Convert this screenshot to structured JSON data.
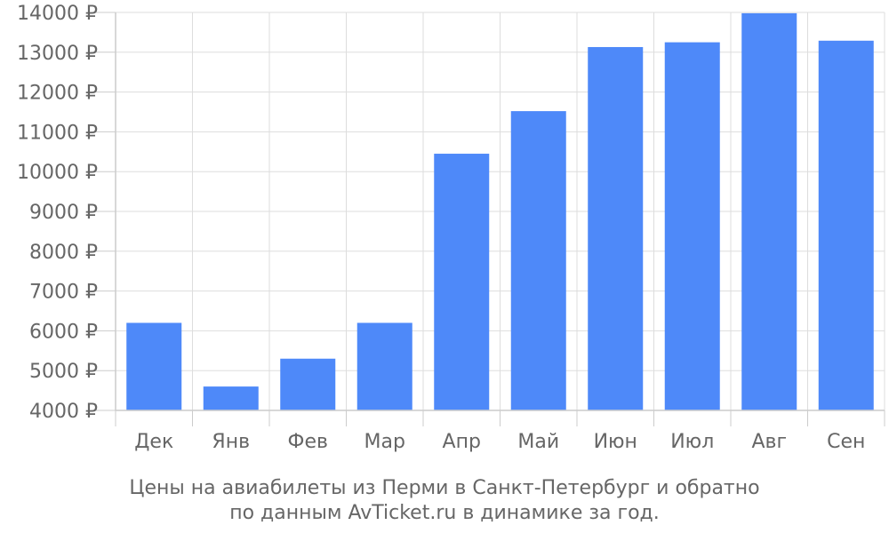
{
  "chart_data": {
    "type": "bar",
    "categories": [
      "Дек",
      "Янв",
      "Фев",
      "Мар",
      "Апр",
      "Май",
      "Июн",
      "Июл",
      "Авг",
      "Сен"
    ],
    "values": [
      6200,
      4600,
      5300,
      6200,
      10450,
      11520,
      13130,
      13250,
      13980,
      13290
    ],
    "ylim": [
      4000,
      14000
    ],
    "yticks": [
      4000,
      5000,
      6000,
      7000,
      8000,
      9000,
      10000,
      11000,
      12000,
      13000,
      14000
    ],
    "ytick_suffix": " ₽",
    "grid": true,
    "legend": "none",
    "bar_color": "#4e89f9",
    "caption_lines": [
      "Цены на авиабилеты из Перми в Санкт-Петербург и обратно",
      "по данным AvTicket.ru в динамике за год."
    ]
  }
}
